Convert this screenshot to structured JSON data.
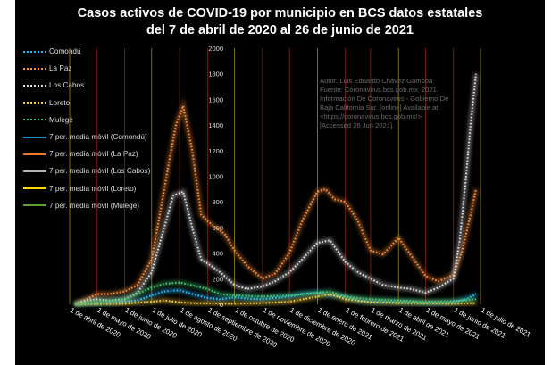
{
  "title_line1": "Casos activos de COVID-19 por municipio en BCS datos estatales",
  "title_line2": "del  7 de abril de 2020 al 26 de junio de 2021",
  "legend": [
    {
      "label": "Comondú",
      "color": "#29b6f6",
      "style": "dotted"
    },
    {
      "label": "La Paz",
      "color": "#f28b3c",
      "style": "dotted"
    },
    {
      "label": "Los Cabos",
      "color": "#d8d8d8",
      "style": "dotted"
    },
    {
      "label": "Loreto",
      "color": "#ffd23c",
      "style": "dotted"
    },
    {
      "label": "Mulegé",
      "color": "#46c878",
      "style": "dotted"
    },
    {
      "label": "7 per. media móvil (Comondú)",
      "color": "#1e90c8",
      "style": "solid"
    },
    {
      "label": "7 per. media móvil (La Paz)",
      "color": "#f07828",
      "style": "solid"
    },
    {
      "label": "7 per. media móvil (Los Cabos)",
      "color": "#b4b4b4",
      "style": "solid"
    },
    {
      "label": "7 per. media móvil (Loreto)",
      "color": "#ffd700",
      "style": "solid"
    },
    {
      "label": "7 per. media móvil (Mulegé)",
      "color": "#5aa032",
      "style": "solid"
    }
  ],
  "watermark": [
    "Autor: Luis Eduardo Chávez Gamboa",
    "Fuente: Coronavirus.bcs.gob.mx. 2021.",
    "Información De Coronavirus - Gobierno De",
    "Baja California Sur. [online] Available at:",
    "<https://coronavirus.bcs.gob.mx/>",
    "[Accessed  26 Jun 2021]."
  ],
  "chart_data": {
    "type": "line",
    "title": "Casos activos de COVID-19 por municipio en BCS datos estatales del 7 de abril de 2020 al 26 de junio de 2021",
    "ylim": [
      0,
      2000
    ],
    "y_ticks": [
      0,
      200,
      400,
      600,
      800,
      1000,
      1200,
      1400,
      1600,
      1800,
      2000
    ],
    "x_tick_labels": [
      "1 de abril de 2020",
      "1 de mayo de 2020",
      "1 de junio de 2020",
      "1 de julio de 2020",
      "1 de agosto de 2020",
      "1 de septiembre de 2020",
      "1 de octubre de 2020",
      "1 de noviembre de 2020",
      "1 de diciembre de 2020",
      "1 de enero de 2021",
      "1 de febrero de 2021",
      "1 de marzo de 2021",
      "1 de abril de 2021",
      "1 de mayo de 2021",
      "1 de junio de 2021",
      "1 de julio de 2021"
    ],
    "grid": "vertical lines at each month",
    "series": [
      {
        "name": "Comondú",
        "x": [
          "2020-04-07",
          "2020-05-15",
          "2020-06-15",
          "2020-07-01",
          "2020-07-15",
          "2020-08-01",
          "2020-08-15",
          "2020-09-01",
          "2020-09-15",
          "2020-10-01",
          "2020-10-15",
          "2020-11-01",
          "2020-11-15",
          "2020-12-01",
          "2020-12-15",
          "2021-01-01",
          "2021-01-15",
          "2021-02-01",
          "2021-02-15",
          "2021-03-01",
          "2021-03-15",
          "2021-04-01",
          "2021-04-15",
          "2021-05-01",
          "2021-05-15",
          "2021-06-01",
          "2021-06-15",
          "2021-06-26"
        ],
        "y": [
          0,
          10,
          30,
          70,
          100,
          110,
          80,
          50,
          40,
          55,
          45,
          40,
          50,
          60,
          80,
          90,
          70,
          60,
          30,
          20,
          20,
          15,
          15,
          10,
          10,
          15,
          40,
          80
        ]
      },
      {
        "name": "La Paz",
        "x": [
          "2020-04-07",
          "2020-04-20",
          "2020-05-01",
          "2020-05-15",
          "2020-06-01",
          "2020-06-15",
          "2020-07-01",
          "2020-07-10",
          "2020-07-20",
          "2020-07-28",
          "2020-08-05",
          "2020-08-15",
          "2020-08-25",
          "2020-09-01",
          "2020-09-10",
          "2020-09-20",
          "2020-10-01",
          "2020-10-15",
          "2020-11-01",
          "2020-11-15",
          "2020-12-01",
          "2020-12-15",
          "2021-01-01",
          "2021-01-10",
          "2021-01-20",
          "2021-02-01",
          "2021-02-15",
          "2021-03-01",
          "2021-03-15",
          "2021-04-01",
          "2021-04-15",
          "2021-05-01",
          "2021-05-15",
          "2021-06-01",
          "2021-06-10",
          "2021-06-20",
          "2021-06-26"
        ],
        "y": [
          0,
          40,
          80,
          80,
          100,
          150,
          350,
          700,
          1100,
          1400,
          1550,
          1200,
          700,
          650,
          600,
          550,
          420,
          300,
          200,
          240,
          400,
          650,
          880,
          900,
          820,
          800,
          650,
          420,
          390,
          520,
          380,
          220,
          180,
          230,
          400,
          700,
          900
        ]
      },
      {
        "name": "Los Cabos",
        "x": [
          "2020-04-07",
          "2020-04-20",
          "2020-05-01",
          "2020-05-15",
          "2020-06-01",
          "2020-06-15",
          "2020-07-01",
          "2020-07-15",
          "2020-07-25",
          "2020-08-05",
          "2020-08-15",
          "2020-08-25",
          "2020-09-01",
          "2020-09-15",
          "2020-10-01",
          "2020-10-15",
          "2020-11-01",
          "2020-11-15",
          "2020-12-01",
          "2020-12-15",
          "2021-01-01",
          "2021-01-15",
          "2021-02-01",
          "2021-02-15",
          "2021-03-01",
          "2021-03-15",
          "2021-04-01",
          "2021-04-15",
          "2021-05-01",
          "2021-05-15",
          "2021-06-01",
          "2021-06-08",
          "2021-06-15",
          "2021-06-20",
          "2021-06-26"
        ],
        "y": [
          0,
          30,
          40,
          30,
          40,
          90,
          250,
          600,
          850,
          880,
          600,
          350,
          320,
          250,
          150,
          120,
          140,
          180,
          250,
          350,
          480,
          500,
          330,
          250,
          200,
          150,
          130,
          120,
          90,
          130,
          200,
          500,
          1000,
          1400,
          1800
        ]
      },
      {
        "name": "Loreto",
        "x": [
          "2020-04-07",
          "2020-06-01",
          "2020-07-01",
          "2020-07-15",
          "2020-08-01",
          "2020-08-15",
          "2020-09-01",
          "2020-10-01",
          "2020-11-01",
          "2020-12-01",
          "2021-01-01",
          "2021-01-15",
          "2021-02-01",
          "2021-03-01",
          "2021-04-01",
          "2021-05-01",
          "2021-06-01",
          "2021-06-26"
        ],
        "y": [
          0,
          5,
          20,
          30,
          15,
          10,
          8,
          5,
          10,
          20,
          60,
          80,
          40,
          15,
          10,
          8,
          5,
          10
        ]
      },
      {
        "name": "Mulegé",
        "x": [
          "2020-04-07",
          "2020-06-01",
          "2020-06-15",
          "2020-07-01",
          "2020-07-15",
          "2020-08-01",
          "2020-08-15",
          "2020-09-01",
          "2020-09-15",
          "2020-10-01",
          "2020-11-01",
          "2020-12-01",
          "2021-01-01",
          "2021-01-15",
          "2021-02-01",
          "2021-03-01",
          "2021-04-01",
          "2021-05-01",
          "2021-06-01",
          "2021-06-26"
        ],
        "y": [
          0,
          40,
          80,
          130,
          160,
          170,
          150,
          120,
          80,
          70,
          60,
          70,
          90,
          100,
          60,
          40,
          30,
          20,
          25,
          40
        ]
      }
    ]
  }
}
